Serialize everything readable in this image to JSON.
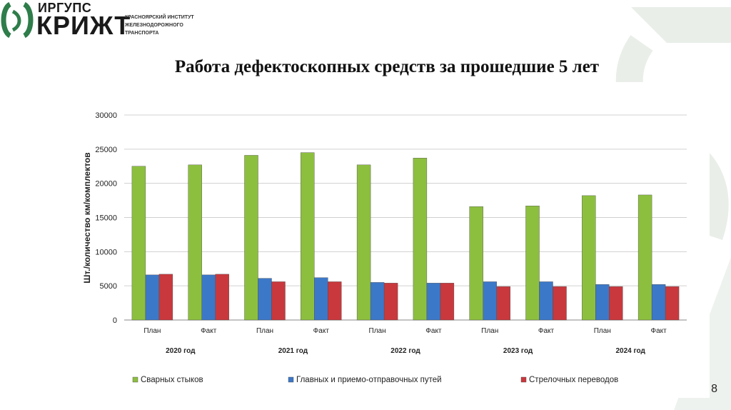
{
  "logo": {
    "brand_top": "ИРГУПС",
    "brand_main": "КРИЖТ",
    "org_line1": "КРАСНОЯРСКИЙ ИНСТИТУТ",
    "org_line2": "ЖЕЛЕЗНОДОРОЖНОГО",
    "org_line3": "ТРАНСПОРТА"
  },
  "slide": {
    "title": "Работа дефектоскопных средств за прошедшие 5 лет",
    "page_number": "8"
  },
  "colors": {
    "green": "#8dbf3f",
    "blue": "#3c78c8",
    "red": "#c9383d",
    "deco": "#e9eee9"
  },
  "chart_data": {
    "type": "bar",
    "title": "",
    "ylabel": "Шт./количество км/комплектов",
    "xlabel": "",
    "ylim": [
      0,
      30000
    ],
    "yticks": [
      0,
      5000,
      10000,
      15000,
      20000,
      25000,
      30000
    ],
    "grid": true,
    "legend_position": "bottom",
    "categories": [
      "План",
      "Факт",
      "План",
      "Факт",
      "План",
      "Факт",
      "План",
      "Факт",
      "План",
      "Факт"
    ],
    "groups": [
      {
        "label": "2020 год",
        "span": [
          0,
          1
        ]
      },
      {
        "label": "2021 год",
        "span": [
          2,
          3
        ]
      },
      {
        "label": "2022 год",
        "span": [
          4,
          5
        ]
      },
      {
        "label": "2023 год",
        "span": [
          6,
          7
        ]
      },
      {
        "label": "2024 год",
        "span": [
          8,
          9
        ]
      }
    ],
    "series": [
      {
        "name": "Сварных стыков",
        "color": "#8dbf3f",
        "values": [
          22500,
          22700,
          24100,
          24500,
          22700,
          23700,
          16600,
          16700,
          18200,
          18300
        ]
      },
      {
        "name": "Главных и приемо-отправочных путей",
        "color": "#3c78c8",
        "values": [
          6600,
          6600,
          6100,
          6200,
          5500,
          5400,
          5600,
          5600,
          5200,
          5200
        ]
      },
      {
        "name": "Стрелочных переводов",
        "color": "#c9383d",
        "values": [
          6700,
          6700,
          5600,
          5600,
          5400,
          5400,
          4900,
          4900,
          4900,
          4900
        ]
      }
    ]
  }
}
